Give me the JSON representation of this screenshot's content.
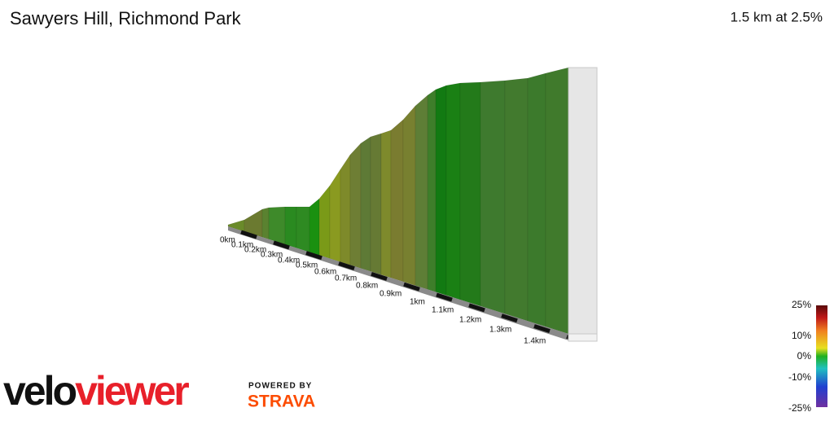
{
  "header": {
    "title": "Sawyers Hill, Richmond Park",
    "summary": "1.5 km at 2.5%"
  },
  "distance_labels": [
    "0km",
    "0.1km",
    "0.2km",
    "0.3km",
    "0.4km",
    "0.5km",
    "0.6km",
    "0.7km",
    "0.8km",
    "0.9km",
    "1km",
    "1.1km",
    "1.2km",
    "1.3km",
    "1.4km"
  ],
  "gradient_legend": {
    "labels": [
      "25%",
      "10%",
      "0%",
      "-10%",
      "-25%"
    ]
  },
  "branding": {
    "logo_start": "velo",
    "logo_end": "viewer",
    "powered_by": "POWERED BY",
    "partner": "STRAVA"
  }
}
